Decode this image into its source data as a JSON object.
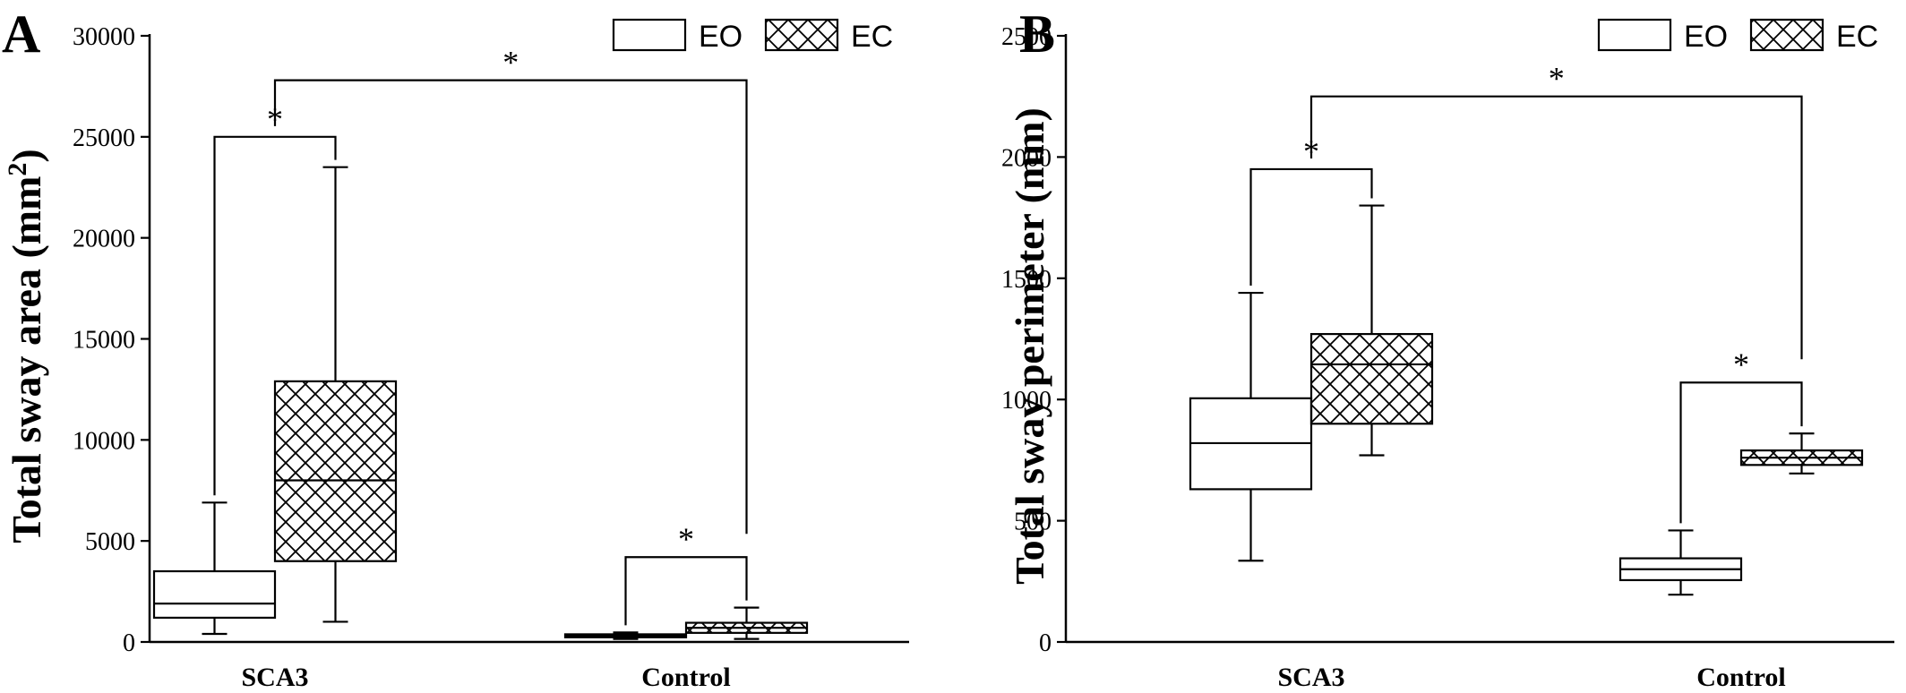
{
  "chart_data": [
    {
      "type": "box",
      "panel": "A",
      "ylabel": "Total sway area (mm",
      "ylabel_sup": "2",
      "ylabel_close": ")",
      "ylim": [
        0,
        30000
      ],
      "yticks": [
        0,
        5000,
        10000,
        15000,
        20000,
        25000,
        30000
      ],
      "ytick_labels": [
        "0",
        "5000",
        "10000",
        "15000",
        "20000",
        "25000",
        "30000"
      ],
      "categories": [
        "SCA3",
        "Control"
      ],
      "legend": [
        "EO",
        "EC"
      ],
      "legend_position": "top-right",
      "series": [
        {
          "name": "EO",
          "pattern": "none",
          "boxes": [
            {
              "category": "SCA3",
              "min": 400,
              "q1": 1200,
              "median": 1900,
              "q3": 3500,
              "max": 6900
            },
            {
              "category": "Control",
              "min": 150,
              "q1": 230,
              "median": 300,
              "q3": 380,
              "max": 470
            }
          ]
        },
        {
          "name": "EC",
          "pattern": "crosshatch",
          "boxes": [
            {
              "category": "SCA3",
              "min": 1000,
              "q1": 4000,
              "median": 8000,
              "q3": 12900,
              "max": 23500
            },
            {
              "category": "Control",
              "min": 150,
              "q1": 450,
              "median": 700,
              "q3": 950,
              "max": 1700
            }
          ]
        }
      ],
      "significance": [
        {
          "pair": "SCA3 EO vs SCA3 EC",
          "label": "*",
          "y": 25000
        },
        {
          "pair": "SCA3 vs Control EC",
          "label": "*",
          "y": 27800
        },
        {
          "pair": "Control EO vs Control EC",
          "label": "*",
          "y": 4200
        }
      ]
    },
    {
      "type": "box",
      "panel": "B",
      "ylabel": "Total sway perimeter (mm)",
      "ylim": [
        0,
        2500
      ],
      "yticks": [
        0,
        500,
        1000,
        1500,
        2000,
        2500
      ],
      "ytick_labels": [
        "0",
        "500",
        "1000",
        "1500",
        "2000",
        "2500"
      ],
      "categories": [
        "SCA3",
        "Control"
      ],
      "legend": [
        "EO",
        "EC"
      ],
      "legend_position": "top-right",
      "series": [
        {
          "name": "EO",
          "pattern": "none",
          "boxes": [
            {
              "category": "SCA3",
              "min": 335,
              "q1": 630,
              "median": 820,
              "q3": 1005,
              "max": 1440
            },
            {
              "category": "Control",
              "min": 195,
              "q1": 255,
              "median": 300,
              "q3": 345,
              "max": 460
            }
          ]
        },
        {
          "name": "EC",
          "pattern": "crosshatch",
          "boxes": [
            {
              "category": "SCA3",
              "min": 770,
              "q1": 900,
              "median": 1145,
              "q3": 1270,
              "max": 1800
            },
            {
              "category": "Control",
              "min": 695,
              "q1": 730,
              "median": 760,
              "q3": 790,
              "max": 860
            }
          ]
        }
      ],
      "significance": [
        {
          "pair": "SCA3 EO vs SCA3 EC",
          "label": "*",
          "y": 1950
        },
        {
          "pair": "SCA3 vs Control EC",
          "label": "*",
          "y": 2250
        },
        {
          "pair": "Control EO vs Control EC",
          "label": "*",
          "y": 1070
        }
      ]
    }
  ]
}
